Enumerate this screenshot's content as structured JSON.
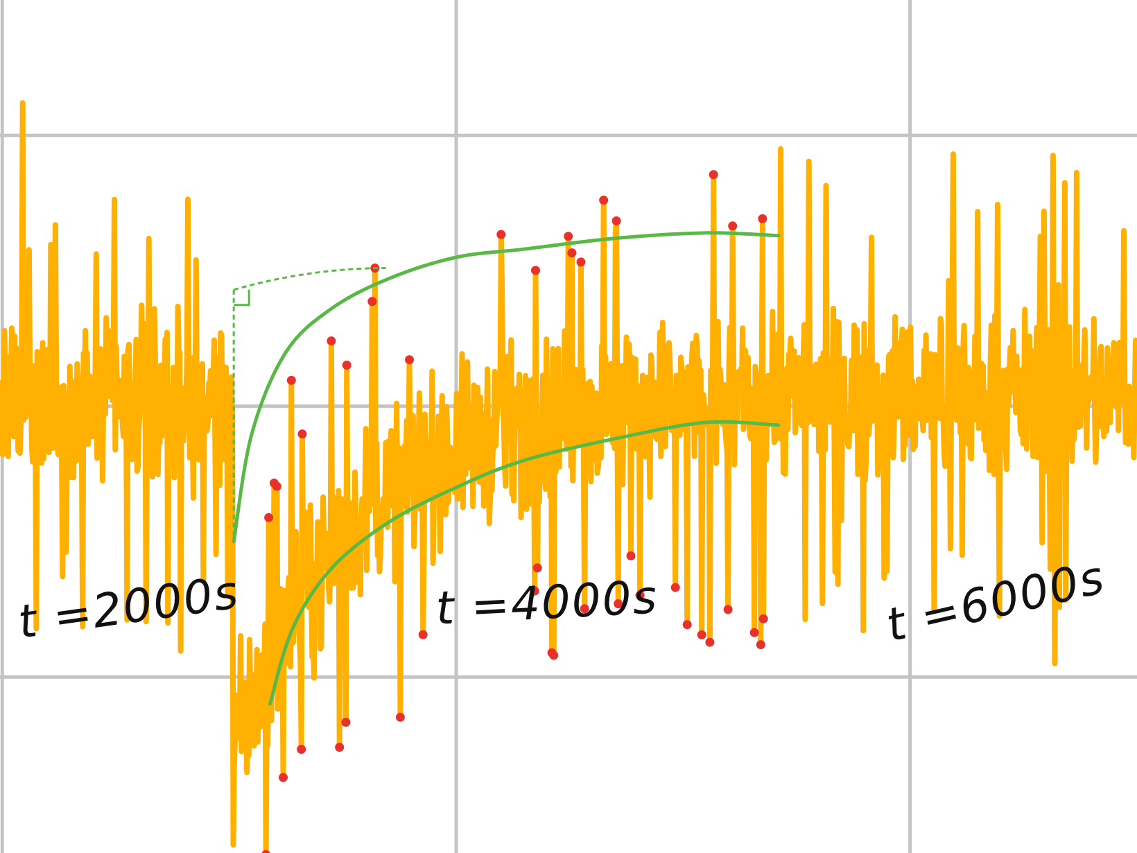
{
  "colors": {
    "background": "#ffffff",
    "grid": "#c4c4c4",
    "signal": "#ffb000",
    "peaks": "#e8312a",
    "envelope": "#5ab846"
  },
  "chart_data": {
    "type": "line",
    "title": "",
    "xlabel": "",
    "ylabel": "",
    "xlim": [
      1990,
      7000
    ],
    "ylim": [
      -1.65,
      1.5
    ],
    "grid": true,
    "annotations": [
      {
        "text": "t =2000s",
        "x": 2000
      },
      {
        "text": "t =4000s",
        "x": 4000
      },
      {
        "text": "t =6000s",
        "x": 6000
      }
    ],
    "disturbance": {
      "onset_x": 3020,
      "end_x": 5420,
      "initial_min": -1.3,
      "steady_level": 0.05,
      "time_constant": 520
    },
    "baseline": {
      "mean": 0.0,
      "amplitude": 0.46
    },
    "upper_envelope": {
      "x": [
        3020,
        3100,
        3250,
        3450,
        3700,
        4000,
        4300,
        4700,
        5100,
        5420
      ],
      "y": [
        -0.5,
        -0.1,
        0.2,
        0.36,
        0.47,
        0.55,
        0.58,
        0.62,
        0.64,
        0.63
      ]
    },
    "lower_envelope": {
      "x": [
        3180,
        3280,
        3450,
        3700,
        4000,
        4300,
        4700,
        5100,
        5420
      ],
      "y": [
        -1.1,
        -0.82,
        -0.6,
        -0.43,
        -0.3,
        -0.2,
        -0.12,
        -0.06,
        -0.07
      ]
    },
    "guide": {
      "horizontal": {
        "x": [
          3020,
          3690
        ],
        "y": [
          0.43,
          0.51
        ]
      },
      "vertical": {
        "x": 3020,
        "y": [
          0.43,
          -0.5
        ]
      }
    }
  }
}
